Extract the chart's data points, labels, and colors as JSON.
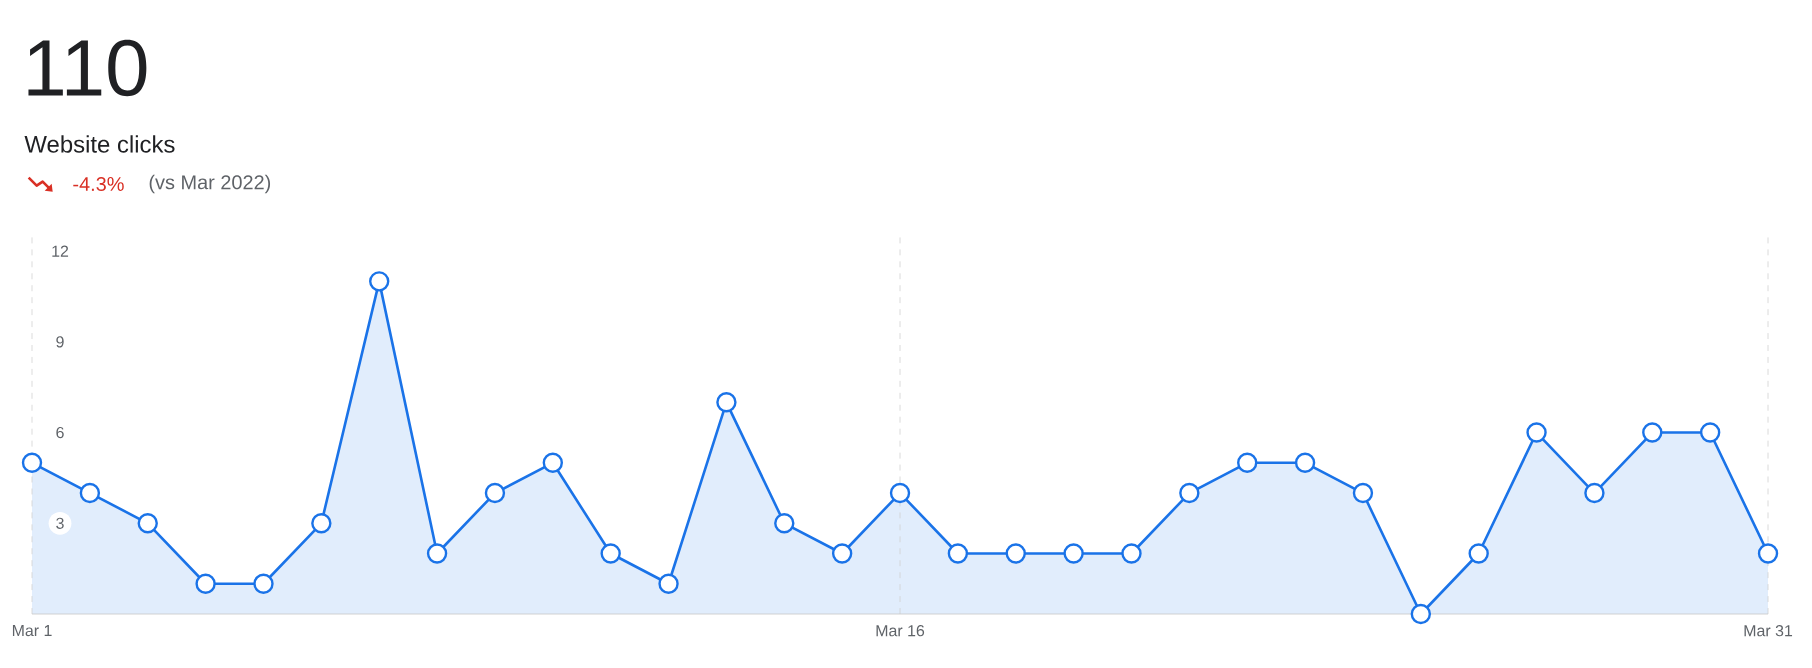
{
  "chart_data": {
    "type": "area",
    "title": "110",
    "subtitle": "Website clicks",
    "annotations": [
      "-4.3%",
      "(vs Mar 2022)"
    ],
    "categories": [
      "Mar 1",
      null,
      null,
      null,
      null,
      null,
      null,
      null,
      null,
      null,
      null,
      null,
      null,
      null,
      null,
      "Mar 16",
      null,
      null,
      null,
      null,
      null,
      null,
      null,
      null,
      null,
      null,
      null,
      null,
      null,
      null,
      "Mar 31"
    ],
    "values": [
      5,
      4,
      3,
      1,
      1,
      3,
      11,
      2,
      4,
      5,
      2,
      1,
      7,
      3,
      2,
      4,
      2,
      2,
      2,
      2,
      4,
      5,
      5,
      4,
      0,
      2,
      6,
      4,
      6,
      6,
      2
    ],
    "color": "#1a73e8",
    "ylim": [
      0,
      12.5
    ],
    "yticks": [
      3,
      6,
      9,
      12
    ],
    "grid": "x",
    "marker": "circle",
    "line_style": "solid"
  }
}
